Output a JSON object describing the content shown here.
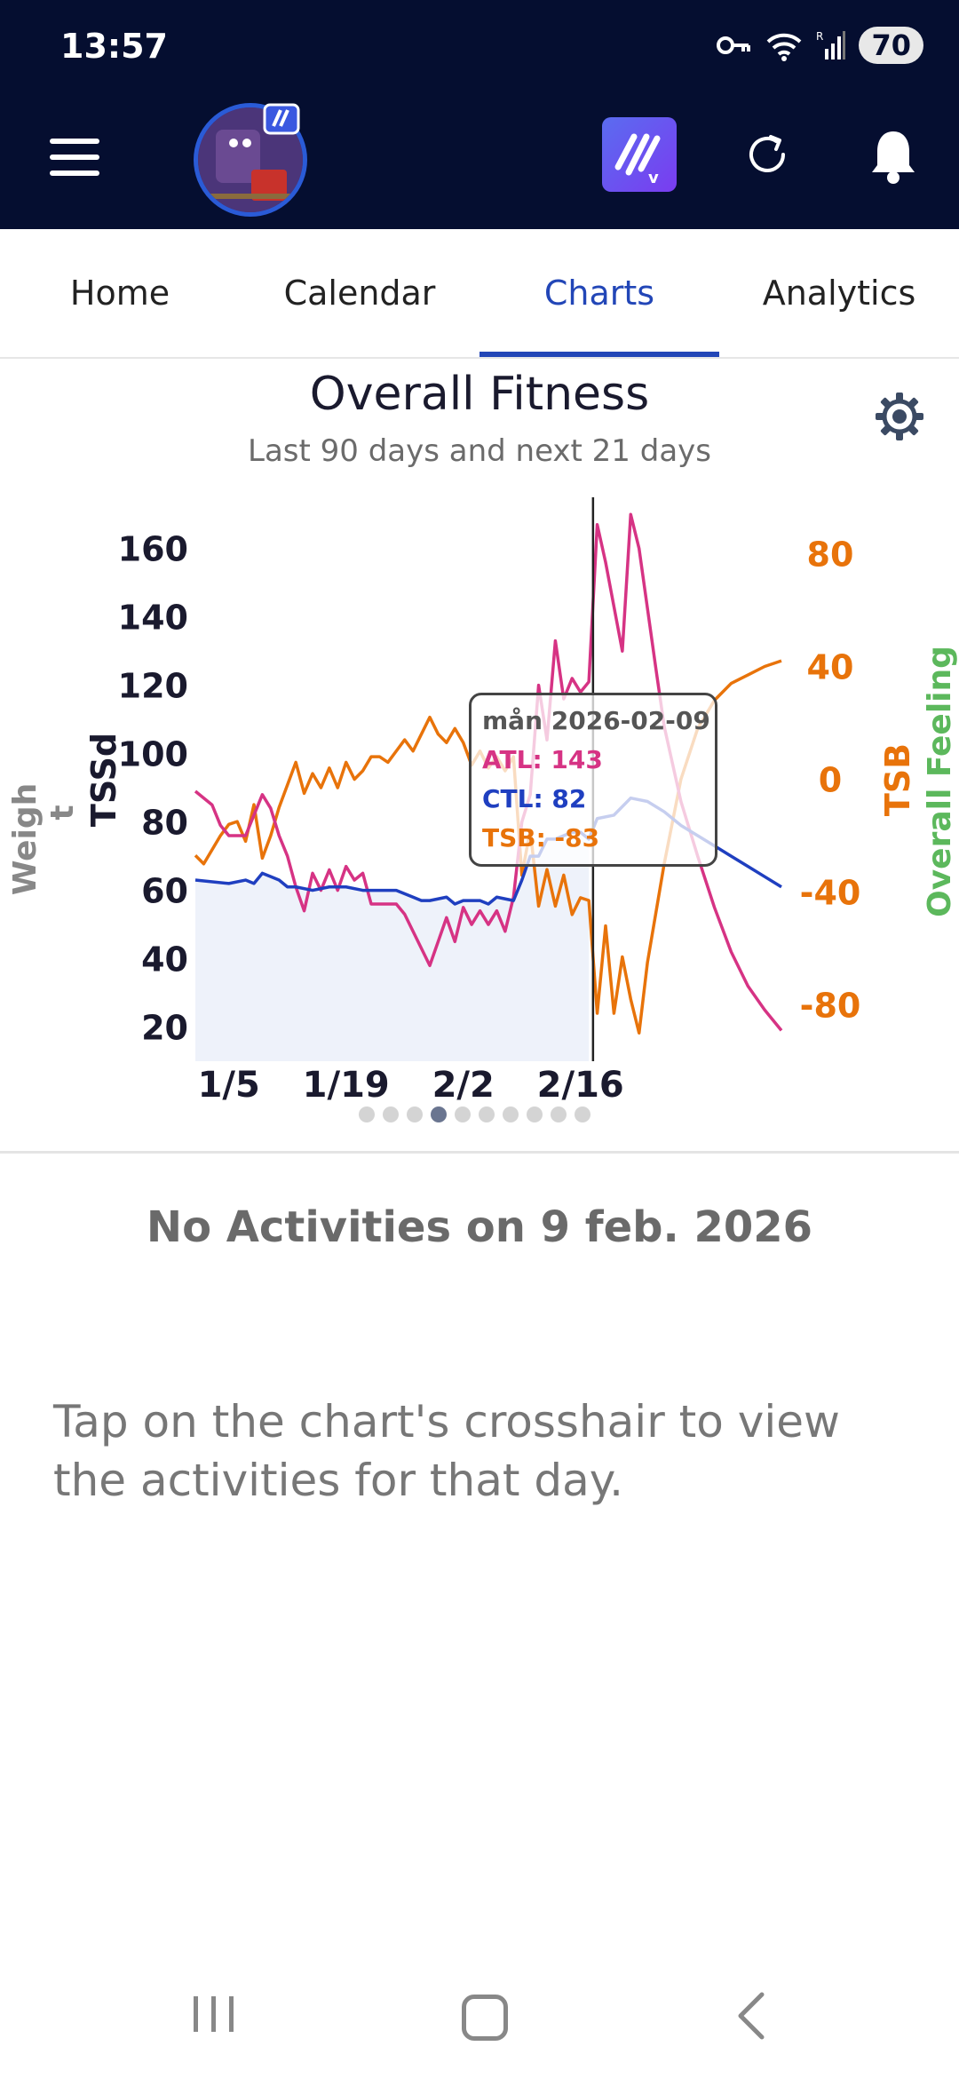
{
  "status_bar": {
    "time": "13:57",
    "battery": "70",
    "signal_badge": "R"
  },
  "app_bar": {
    "menu_icon": "hamburger-icon",
    "avatar": "profile-avatar",
    "app_logo": "intervals-logo-icon",
    "refresh_icon": "refresh-icon",
    "bell_icon": "bell-icon"
  },
  "tabs": [
    {
      "label": "Home"
    },
    {
      "label": "Calendar"
    },
    {
      "label": "Charts",
      "active": true
    },
    {
      "label": "Analytics"
    }
  ],
  "chart": {
    "title": "Overall Fitness",
    "subtitle": "Last 90 days and next 21 days",
    "settings_icon": "gear-icon"
  },
  "chart_data": {
    "type": "line",
    "x_tick_labels": [
      "1/5",
      "1/19",
      "2/2",
      "2/16"
    ],
    "left_axis_ticks": [
      "160",
      "140",
      "120",
      "100",
      "80",
      "60",
      "40",
      "20"
    ],
    "right_axis_ticks": [
      "80",
      "40",
      "0",
      "-40",
      "-80"
    ],
    "left_labels": [
      "Weigh",
      "t",
      "TSSd"
    ],
    "right_labels": [
      "TSB",
      "Overall Feeling"
    ],
    "ylim_left": [
      10,
      175
    ],
    "ylim_right": [
      -100,
      100
    ],
    "colors": {
      "atl": "#d63384",
      "ctl": "#1f3fc0",
      "tsb": "#e8730a",
      "feeling": "#5cb85c",
      "weight": "#888888"
    },
    "series": [
      {
        "name": "ATL",
        "axis": "left",
        "points": [
          [
            0,
            89
          ],
          [
            2,
            85
          ],
          [
            3,
            79
          ],
          [
            4,
            76
          ],
          [
            6,
            76
          ],
          [
            8,
            88
          ],
          [
            9,
            84
          ],
          [
            10,
            76
          ],
          [
            11,
            70
          ],
          [
            12,
            61
          ],
          [
            13,
            54
          ],
          [
            14,
            65
          ],
          [
            15,
            60
          ],
          [
            16,
            66
          ],
          [
            17,
            60
          ],
          [
            18,
            67
          ],
          [
            19,
            63
          ],
          [
            20,
            65
          ],
          [
            21,
            56
          ],
          [
            23,
            56
          ],
          [
            24,
            56
          ],
          [
            25,
            53
          ],
          [
            26,
            48
          ],
          [
            27,
            43
          ],
          [
            28,
            38
          ],
          [
            29,
            45
          ],
          [
            30,
            52
          ],
          [
            31,
            45
          ],
          [
            32,
            55
          ],
          [
            33,
            50
          ],
          [
            34,
            54
          ],
          [
            35,
            50
          ],
          [
            36,
            54
          ],
          [
            37,
            48
          ],
          [
            38,
            58
          ],
          [
            39,
            80
          ],
          [
            40,
            88
          ],
          [
            41,
            120
          ],
          [
            42,
            104
          ],
          [
            43,
            133
          ],
          [
            44,
            116
          ],
          [
            45,
            122
          ],
          [
            46,
            118
          ],
          [
            47,
            121
          ],
          [
            48,
            167
          ],
          [
            49,
            156
          ],
          [
            50,
            143
          ],
          [
            51,
            130
          ],
          [
            52,
            170
          ],
          [
            53,
            160
          ],
          [
            55,
            125
          ],
          [
            56,
            108
          ],
          [
            58,
            86
          ],
          [
            60,
            70
          ],
          [
            62,
            55
          ],
          [
            64,
            42
          ],
          [
            66,
            32
          ],
          [
            68,
            25
          ],
          [
            70,
            19
          ]
        ]
      },
      {
        "name": "CTL",
        "axis": "left",
        "points": [
          [
            0,
            63
          ],
          [
            4,
            62
          ],
          [
            6,
            63
          ],
          [
            7,
            62
          ],
          [
            8,
            65
          ],
          [
            9,
            64
          ],
          [
            10,
            63
          ],
          [
            11,
            61
          ],
          [
            12,
            61
          ],
          [
            14,
            60
          ],
          [
            16,
            61
          ],
          [
            18,
            61
          ],
          [
            20,
            60
          ],
          [
            22,
            60
          ],
          [
            24,
            60
          ],
          [
            26,
            58
          ],
          [
            27,
            57
          ],
          [
            28,
            57
          ],
          [
            30,
            58
          ],
          [
            31,
            56
          ],
          [
            32,
            57
          ],
          [
            34,
            57
          ],
          [
            35,
            56
          ],
          [
            36,
            58
          ],
          [
            38,
            57
          ],
          [
            39,
            63
          ],
          [
            40,
            70
          ],
          [
            41,
            70
          ],
          [
            42,
            75
          ],
          [
            43,
            75
          ],
          [
            44,
            76
          ],
          [
            45,
            77
          ],
          [
            46,
            77
          ],
          [
            47,
            75
          ],
          [
            48,
            81
          ],
          [
            50,
            82
          ],
          [
            52,
            87
          ],
          [
            54,
            86
          ],
          [
            56,
            83
          ],
          [
            58,
            79
          ],
          [
            60,
            76
          ],
          [
            62,
            73
          ],
          [
            64,
            70
          ],
          [
            66,
            67
          ],
          [
            68,
            64
          ],
          [
            70,
            61
          ]
        ]
      },
      {
        "name": "TSB",
        "axis": "right",
        "points": [
          [
            0,
            -27
          ],
          [
            1,
            -30
          ],
          [
            2,
            -25
          ],
          [
            3,
            -20
          ],
          [
            4,
            -16
          ],
          [
            5,
            -15
          ],
          [
            6,
            -22
          ],
          [
            7,
            -9
          ],
          [
            8,
            -28
          ],
          [
            9,
            -20
          ],
          [
            10,
            -10
          ],
          [
            11,
            -2
          ],
          [
            12,
            6
          ],
          [
            13,
            -5
          ],
          [
            14,
            2
          ],
          [
            15,
            -3
          ],
          [
            16,
            4
          ],
          [
            17,
            -3
          ],
          [
            18,
            6
          ],
          [
            19,
            0
          ],
          [
            20,
            3
          ],
          [
            21,
            8
          ],
          [
            22,
            8
          ],
          [
            23,
            6
          ],
          [
            24,
            10
          ],
          [
            25,
            14
          ],
          [
            26,
            10
          ],
          [
            27,
            16
          ],
          [
            28,
            22
          ],
          [
            29,
            16
          ],
          [
            30,
            13
          ],
          [
            31,
            18
          ],
          [
            32,
            13
          ],
          [
            33,
            5
          ],
          [
            34,
            10
          ],
          [
            35,
            4
          ],
          [
            36,
            8
          ],
          [
            37,
            3
          ],
          [
            38,
            8
          ],
          [
            39,
            -34
          ],
          [
            40,
            -18
          ],
          [
            41,
            -45
          ],
          [
            42,
            -32
          ],
          [
            43,
            -45
          ],
          [
            44,
            -34
          ],
          [
            45,
            -48
          ],
          [
            46,
            -42
          ],
          [
            47,
            -43
          ],
          [
            48,
            -83
          ],
          [
            49,
            -52
          ],
          [
            50,
            -83
          ],
          [
            51,
            -63
          ],
          [
            52,
            -78
          ],
          [
            53,
            -90
          ],
          [
            54,
            -65
          ],
          [
            56,
            -30
          ],
          [
            58,
            0
          ],
          [
            60,
            18
          ],
          [
            62,
            28
          ],
          [
            64,
            34
          ],
          [
            66,
            37
          ],
          [
            68,
            40
          ],
          [
            70,
            42
          ]
        ]
      }
    ],
    "fill_series": "CTL",
    "crosshair_x": 47.5,
    "x_range": [
      0,
      70
    ],
    "tooltip": {
      "date": "mån 2026-02-09",
      "atl": "ATL: 143",
      "ctl": "CTL: 82",
      "tsb": "TSB: -83"
    }
  },
  "pagination": {
    "count": 10,
    "active_index": 3
  },
  "activities": {
    "empty_title": "No Activities on 9 feb. 2026",
    "hint": "Tap on the chart's crosshair to view the activities for that day."
  },
  "nav_bar": {
    "recent_icon": "recent-apps-icon",
    "home_icon": "home-icon",
    "back_icon": "back-icon"
  }
}
